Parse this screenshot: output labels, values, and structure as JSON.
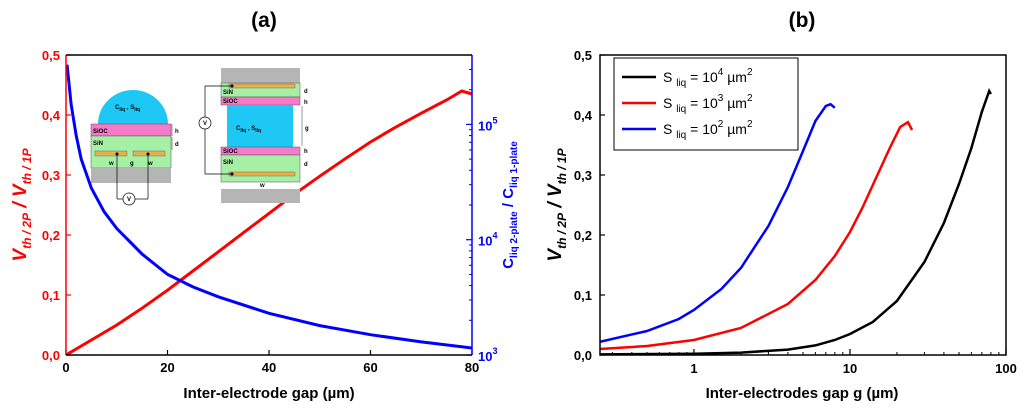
{
  "chart_data": [
    {
      "panel": "(a)",
      "type": "line",
      "xlabel": "Inter-electrode gap (µm)",
      "ylabel_left": "V th / 2P / V th / 1P",
      "ylabel_right": "C liq 2-plate / C liq 1-plate",
      "xlim": [
        0,
        80
      ],
      "ylim_left": [
        0,
        0.5
      ],
      "ylim_right_log": [
        1000,
        400000
      ],
      "xticks": [
        "0",
        "20",
        "40",
        "60",
        "80"
      ],
      "yticks_left": [
        "0,0",
        "0,1",
        "0,2",
        "0,3",
        "0,4",
        "0,5"
      ],
      "yticks_right": [
        {
          "base": "10",
          "exp": "3",
          "value": 1000
        },
        {
          "base": "10",
          "exp": "4",
          "value": 10000
        },
        {
          "base": "10",
          "exp": "5",
          "value": 100000
        }
      ],
      "series": [
        {
          "name": "V th/2P / V th/1P",
          "axis": "left",
          "color": "#ff0000",
          "x": [
            0,
            5,
            10,
            15,
            20,
            25,
            30,
            35,
            40,
            45,
            50,
            55,
            60,
            65,
            70,
            75,
            78,
            80
          ],
          "y": [
            0,
            0.025,
            0.05,
            0.078,
            0.108,
            0.14,
            0.172,
            0.204,
            0.236,
            0.268,
            0.298,
            0.327,
            0.355,
            0.38,
            0.403,
            0.425,
            0.44,
            0.435
          ]
        },
        {
          "name": "C liq 2-plate / C liq 1-plate",
          "axis": "right",
          "color": "#0000ff",
          "x": [
            0.2,
            0.5,
            1,
            2,
            3,
            5,
            7.5,
            10,
            15,
            20,
            25,
            30,
            40,
            50,
            60,
            70,
            80
          ],
          "y": [
            330000,
            250000,
            150000,
            80000,
            50000,
            28000,
            17500,
            12500,
            7500,
            5000,
            3900,
            3200,
            2300,
            1800,
            1500,
            1300,
            1150
          ]
        }
      ],
      "inset": {
        "left_labels": [
          "C",
          "liq",
          "S",
          "liq",
          "SiOC",
          "SiN",
          "h",
          "d",
          "w",
          "g",
          "w",
          "V"
        ],
        "right_labels": [
          "SiN",
          "SiOC",
          "d",
          "h",
          "C",
          "liq",
          "S",
          "liq",
          "g",
          "SiOC",
          "SiN",
          "h",
          "d",
          "w",
          "V"
        ]
      }
    },
    {
      "panel": "(b)",
      "type": "line",
      "xscale": "log",
      "xlabel": "Inter-electrodes gap g (µm)",
      "ylabel": "V th / 2P / V th / 1P",
      "xlim": [
        0.25,
        100
      ],
      "ylim": [
        0,
        0.5
      ],
      "xticks": [
        "1",
        "10",
        "100"
      ],
      "yticks": [
        "0,0",
        "0,1",
        "0,2",
        "0,3",
        "0,4",
        "0,5"
      ],
      "legend_position": "top-left",
      "series": [
        {
          "name": "S liq = 10^4 µm^2",
          "label": "S",
          "sub": "liq",
          "eq": " = 10",
          "exp": "4",
          "unit": " µm",
          "uexp": "2",
          "color": "#000000",
          "x": [
            0.25,
            1,
            2,
            4,
            6,
            8,
            10,
            14,
            20,
            30,
            40,
            50,
            60,
            70,
            78,
            80
          ],
          "y": [
            0.001,
            0.002,
            0.004,
            0.009,
            0.016,
            0.025,
            0.035,
            0.055,
            0.09,
            0.155,
            0.22,
            0.285,
            0.345,
            0.405,
            0.44,
            0.435
          ]
        },
        {
          "name": "S liq = 10^3 µm^2",
          "label": "S",
          "sub": "liq",
          "eq": " = 10",
          "exp": "3",
          "unit": " µm",
          "uexp": "2",
          "color": "#ff0000",
          "x": [
            0.25,
            0.5,
            1,
            2,
            4,
            6,
            8,
            10,
            12,
            15,
            18,
            21,
            23.5,
            25
          ],
          "y": [
            0.01,
            0.015,
            0.025,
            0.045,
            0.085,
            0.125,
            0.165,
            0.205,
            0.245,
            0.3,
            0.345,
            0.38,
            0.388,
            0.375
          ]
        },
        {
          "name": "S liq = 10^2 µm^2",
          "label": "S",
          "sub": "liq",
          "eq": " = 10",
          "exp": "2",
          "unit": " µm",
          "uexp": "2",
          "color": "#0000ff",
          "x": [
            0.25,
            0.5,
            0.8,
            1,
            1.5,
            2,
            3,
            4,
            5,
            6,
            7,
            7.5,
            8
          ],
          "y": [
            0.022,
            0.04,
            0.06,
            0.075,
            0.11,
            0.145,
            0.215,
            0.28,
            0.34,
            0.39,
            0.415,
            0.418,
            0.412
          ]
        }
      ]
    }
  ]
}
